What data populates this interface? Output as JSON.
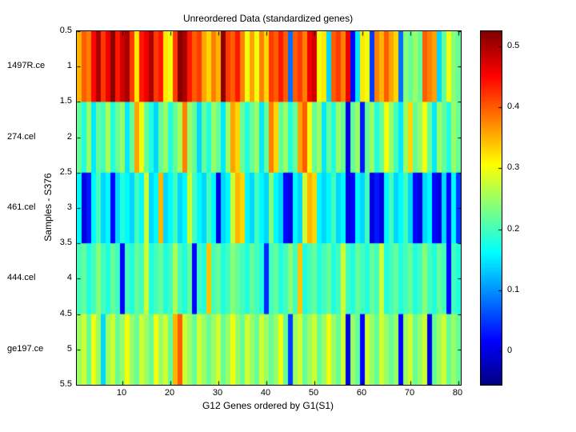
{
  "chart_data": {
    "type": "heatmap",
    "title": "Unreordered Data (standardized genes)",
    "xlabel": "G12 Genes ordered by G1(S1)",
    "ylabel": "Samples - S376",
    "row_labels": [
      "1497R.ce",
      "274.cel",
      "461.cel",
      "444.cel",
      "ge197.ce"
    ],
    "y_tick_labels": [
      "0.5",
      "1",
      "1.5",
      "2",
      "2.5",
      "3",
      "3.5",
      "4",
      "4.5",
      "5",
      "5.5"
    ],
    "y_ticks": [
      0.5,
      1,
      1.5,
      2,
      2.5,
      3,
      3.5,
      4,
      4.5,
      5,
      5.5
    ],
    "x_ticks": [
      10,
      20,
      30,
      40,
      50,
      60,
      70,
      80
    ],
    "x_range": [
      0.5,
      80.5
    ],
    "y_range": [
      0.5,
      5.5
    ],
    "grid": false,
    "colormap": "jet",
    "color_range": {
      "min": -0.055,
      "max": 0.525
    },
    "colorbar_ticks": [
      0.5,
      0.4,
      0.3,
      0.2,
      0.1,
      0
    ],
    "colorbar_tick_labels": [
      "0.5",
      "0.4",
      "0.3",
      "0.2",
      "0.1",
      "0"
    ],
    "values": [
      [
        0.35,
        0.4,
        0.38,
        0.45,
        0.5,
        0.42,
        0.46,
        0.52,
        0.44,
        0.48,
        0.5,
        0.42,
        0.32,
        0.44,
        0.46,
        0.5,
        0.42,
        0.44,
        0.32,
        0.3,
        0.42,
        0.52,
        0.5,
        0.44,
        0.4,
        0.42,
        0.36,
        0.33,
        0.38,
        0.35,
        0.52,
        0.42,
        0.4,
        0.44,
        0.38,
        0.3,
        0.36,
        0.3,
        0.38,
        0.33,
        0.42,
        0.4,
        0.44,
        0.4,
        0.08,
        0.4,
        0.42,
        0.38,
        0.46,
        0.48,
        0.3,
        0.32,
        0.14,
        0.4,
        0.42,
        0.38,
        0.46,
        0.02,
        0.15,
        0.32,
        0.3,
        0.05,
        0.38,
        0.35,
        0.4,
        0.36,
        0.33,
        0.08,
        0.24,
        0.22,
        0.25,
        0.22,
        0.4,
        0.38,
        0.36,
        0.14,
        0.22,
        0.3,
        0.24,
        0.22
      ],
      [
        0.22,
        0.18,
        0.25,
        0.15,
        0.22,
        0.2,
        0.26,
        0.18,
        0.22,
        0.25,
        0.15,
        0.22,
        0.36,
        0.3,
        0.22,
        0.18,
        0.14,
        0.22,
        0.25,
        0.18,
        0.22,
        0.26,
        0.38,
        0.25,
        0.22,
        0.14,
        0.22,
        0.18,
        0.25,
        0.22,
        0.15,
        0.25,
        0.36,
        0.33,
        0.22,
        0.18,
        0.22,
        0.25,
        0.15,
        0.22,
        0.38,
        0.33,
        0.22,
        0.25,
        0.18,
        0.22,
        0.36,
        0.4,
        0.3,
        0.22,
        0.25,
        0.15,
        0.22,
        0.18,
        0.25,
        0.22,
        0.0,
        0.22,
        0.25,
        0.03,
        0.22,
        0.25,
        0.18,
        0.22,
        0.3,
        0.25,
        0.2,
        0.15,
        0.25,
        0.33,
        0.22,
        0.25,
        0.3,
        0.22,
        0.15,
        0.25,
        0.22,
        0.18,
        0.25,
        0.22
      ],
      [
        0.16,
        0.0,
        0.03,
        0.16,
        0.2,
        0.14,
        0.16,
        0.02,
        0.14,
        0.18,
        0.16,
        0.14,
        0.2,
        0.16,
        0.28,
        0.14,
        0.16,
        0.35,
        0.14,
        0.16,
        0.2,
        0.14,
        0.16,
        0.28,
        0.2,
        0.16,
        0.14,
        0.2,
        0.16,
        0.0,
        0.14,
        0.16,
        0.28,
        0.35,
        0.33,
        0.16,
        0.14,
        0.2,
        0.16,
        0.14,
        0.24,
        0.16,
        0.14,
        0.02,
        0.0,
        0.16,
        0.14,
        0.28,
        0.35,
        0.33,
        0.16,
        0.14,
        0.16,
        0.2,
        0.14,
        0.16,
        0.0,
        0.02,
        0.16,
        0.14,
        0.2,
        0.0,
        0.03,
        0.0,
        0.16,
        0.2,
        0.14,
        0.16,
        0.2,
        0.14,
        0.02,
        0.0,
        0.14,
        0.16,
        0.02,
        0.0,
        0.14,
        0.02,
        0.16,
        0.05
      ],
      [
        0.2,
        0.22,
        0.18,
        0.2,
        0.24,
        0.2,
        0.18,
        0.22,
        0.2,
        0.02,
        0.2,
        0.18,
        0.22,
        0.2,
        0.28,
        0.18,
        0.2,
        0.22,
        0.18,
        0.2,
        0.26,
        0.2,
        0.18,
        0.22,
        0.02,
        0.2,
        0.18,
        0.34,
        0.2,
        0.22,
        0.18,
        0.2,
        0.24,
        0.22,
        0.2,
        0.18,
        0.22,
        0.2,
        0.18,
        0.04,
        0.2,
        0.22,
        0.18,
        0.2,
        0.24,
        0.2,
        0.34,
        0.18,
        0.2,
        0.22,
        0.18,
        0.2,
        0.22,
        0.18,
        0.2,
        0.28,
        0.2,
        0.18,
        0.22,
        0.2,
        0.18,
        0.22,
        0.2,
        0.28,
        0.18,
        0.2,
        0.22,
        0.18,
        0.2,
        0.22,
        0.18,
        0.2,
        0.24,
        0.2,
        0.18,
        0.22,
        0.2,
        0.02,
        0.2,
        0.18
      ],
      [
        0.25,
        0.28,
        0.22,
        0.3,
        0.25,
        0.14,
        0.25,
        0.28,
        0.22,
        0.25,
        0.3,
        0.25,
        0.22,
        0.28,
        0.25,
        0.22,
        0.3,
        0.25,
        0.28,
        0.22,
        0.35,
        0.4,
        0.28,
        0.25,
        0.22,
        0.28,
        0.25,
        0.22,
        0.25,
        0.28,
        0.22,
        0.25,
        0.3,
        0.25,
        0.22,
        0.28,
        0.25,
        0.22,
        0.28,
        0.25,
        0.22,
        0.25,
        0.3,
        0.22,
        0.05,
        0.25,
        0.28,
        0.22,
        0.25,
        0.28,
        0.22,
        0.25,
        0.3,
        0.25,
        0.22,
        0.28,
        0.0,
        0.25,
        0.22,
        0.02,
        0.28,
        0.25,
        0.22,
        0.28,
        0.25,
        0.22,
        0.25,
        0.02,
        0.25,
        0.28,
        0.22,
        0.25,
        0.28,
        0.0,
        0.22,
        0.25,
        0.28,
        0.22,
        0.25,
        0.22
      ]
    ]
  }
}
